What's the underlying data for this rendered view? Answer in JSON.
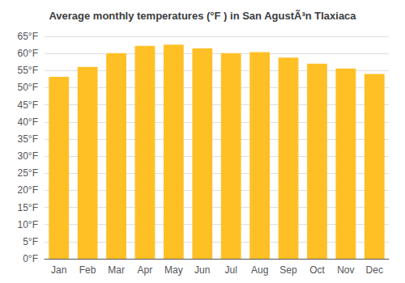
{
  "chart_data": {
    "type": "bar",
    "title": "Average monthly temperatures (°F ) in San AgustÃ³n Tlaxiaca",
    "categories": [
      "Jan",
      "Feb",
      "Mar",
      "Apr",
      "May",
      "Jun",
      "Jul",
      "Aug",
      "Sep",
      "Oct",
      "Nov",
      "Dec"
    ],
    "values": [
      53.2,
      56.1,
      60.1,
      62.2,
      62.6,
      61.5,
      60.1,
      60.4,
      58.8,
      57.0,
      55.6,
      54.0
    ],
    "color": "#FFC026",
    "ylim": [
      0,
      65
    ],
    "yticks": [
      {
        "value": 0,
        "label": "0°F"
      },
      {
        "value": 5,
        "label": "5°F"
      },
      {
        "value": 10,
        "label": "10°F"
      },
      {
        "value": 15,
        "label": "15°F"
      },
      {
        "value": 20,
        "label": "20°F"
      },
      {
        "value": 25,
        "label": "25°F"
      },
      {
        "value": 30,
        "label": "30°F"
      },
      {
        "value": 35,
        "label": "35°F"
      },
      {
        "value": 40,
        "label": "40°F"
      },
      {
        "value": 45,
        "label": "45°F"
      },
      {
        "value": 50,
        "label": "50°F"
      },
      {
        "value": 55,
        "label": "55°F"
      },
      {
        "value": 60,
        "label": "60°F"
      },
      {
        "value": 65,
        "label": "65°F"
      }
    ],
    "grid": true
  }
}
